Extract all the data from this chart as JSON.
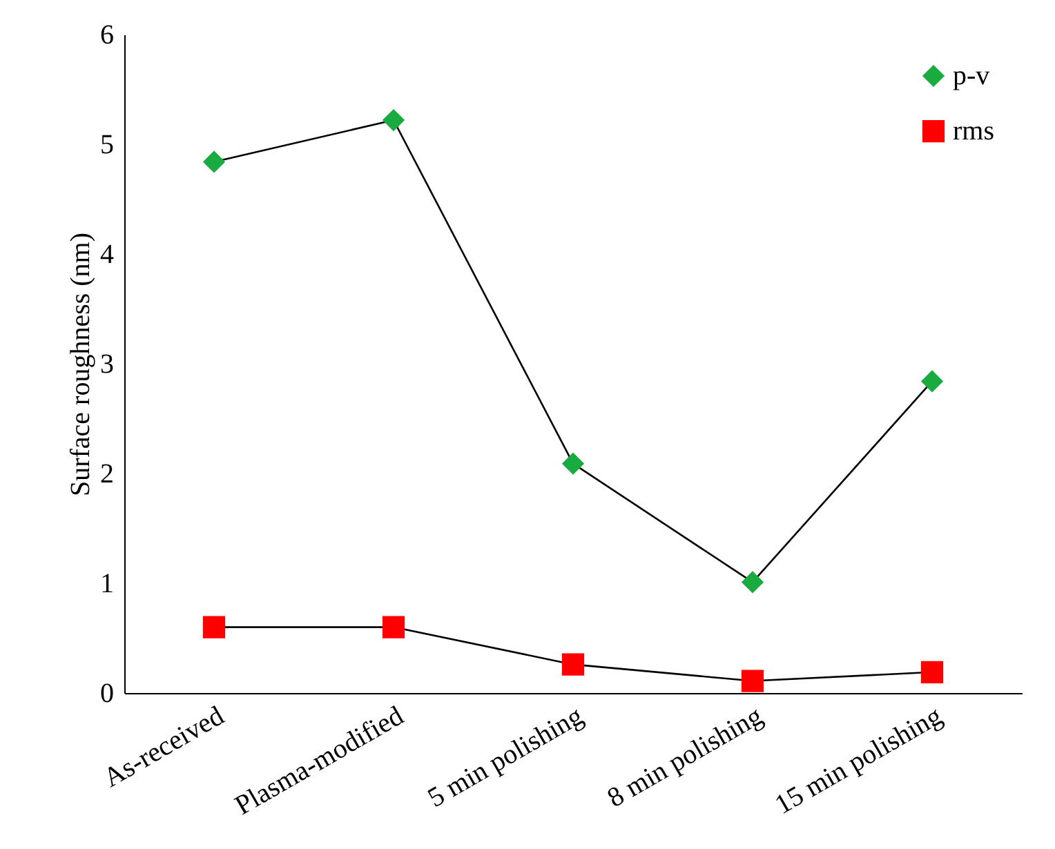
{
  "chart_data": {
    "type": "line",
    "ylabel": "Surface roughness (nm)",
    "categories": [
      "As-received",
      "Plasma-modified",
      "5 min  polishing",
      "8 min  polishing",
      "15 min  polishing"
    ],
    "series": [
      {
        "name": "p-v",
        "color": "#1aab40",
        "marker": "diamond",
        "values": [
          4.84,
          5.22,
          2.09,
          1.01,
          2.84
        ]
      },
      {
        "name": "rms",
        "color": "#ff0000",
        "marker": "square",
        "values": [
          0.6,
          0.6,
          0.26,
          0.11,
          0.19
        ]
      }
    ],
    "ylim": [
      0,
      6
    ],
    "yticks": [
      0,
      1,
      2,
      3,
      4,
      5,
      6
    ],
    "grid": false,
    "legend": "top right",
    "line_style": "solid"
  }
}
